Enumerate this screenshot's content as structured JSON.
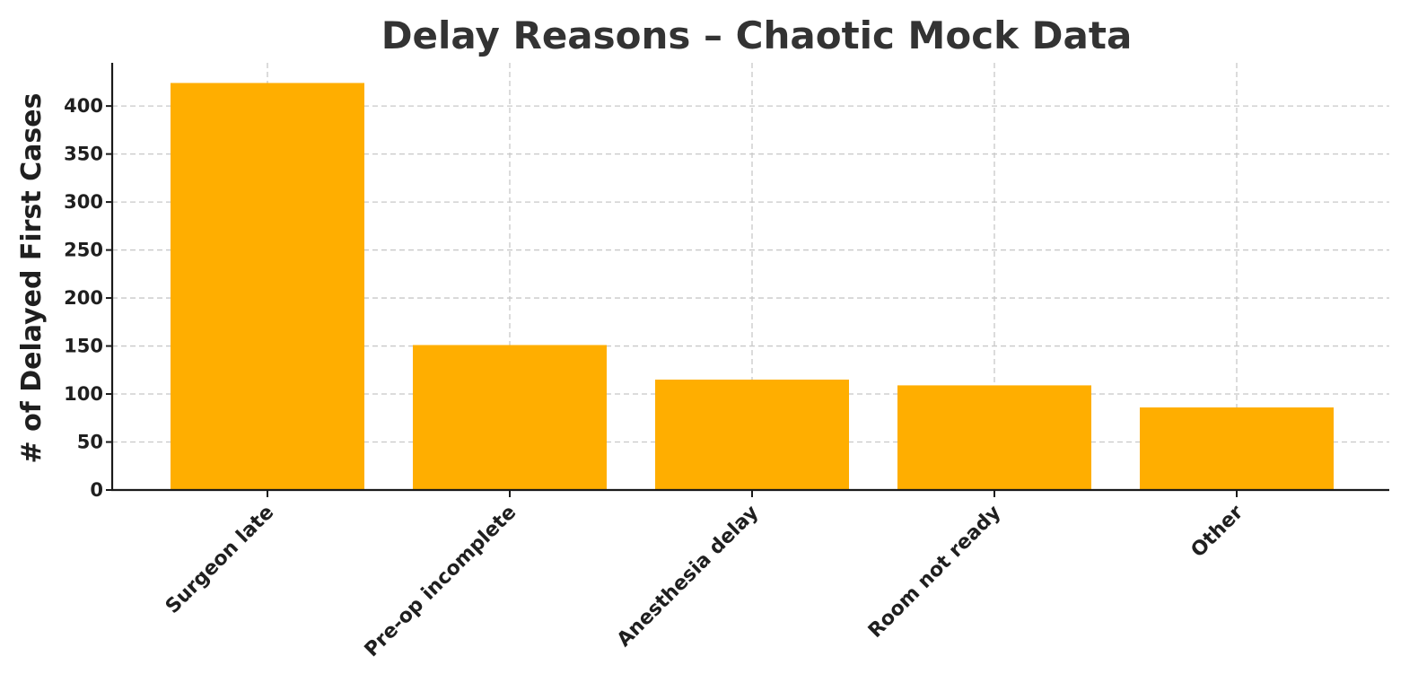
{
  "chart_data": {
    "type": "bar",
    "title": "Delay Reasons – Chaotic Mock Data",
    "xlabel": "",
    "ylabel": "# of Delayed First Cases",
    "categories": [
      "Surgeon late",
      "Pre-op incomplete",
      "Anesthesia delay",
      "Room not ready",
      "Other"
    ],
    "values": [
      424,
      151,
      115,
      109,
      86
    ],
    "ylim": [
      0,
      445
    ],
    "yticks": [
      0,
      50,
      100,
      150,
      200,
      250,
      300,
      350,
      400
    ],
    "grid": true,
    "bar_color": "#FFAE00",
    "x_tick_rotation_deg": 45
  }
}
